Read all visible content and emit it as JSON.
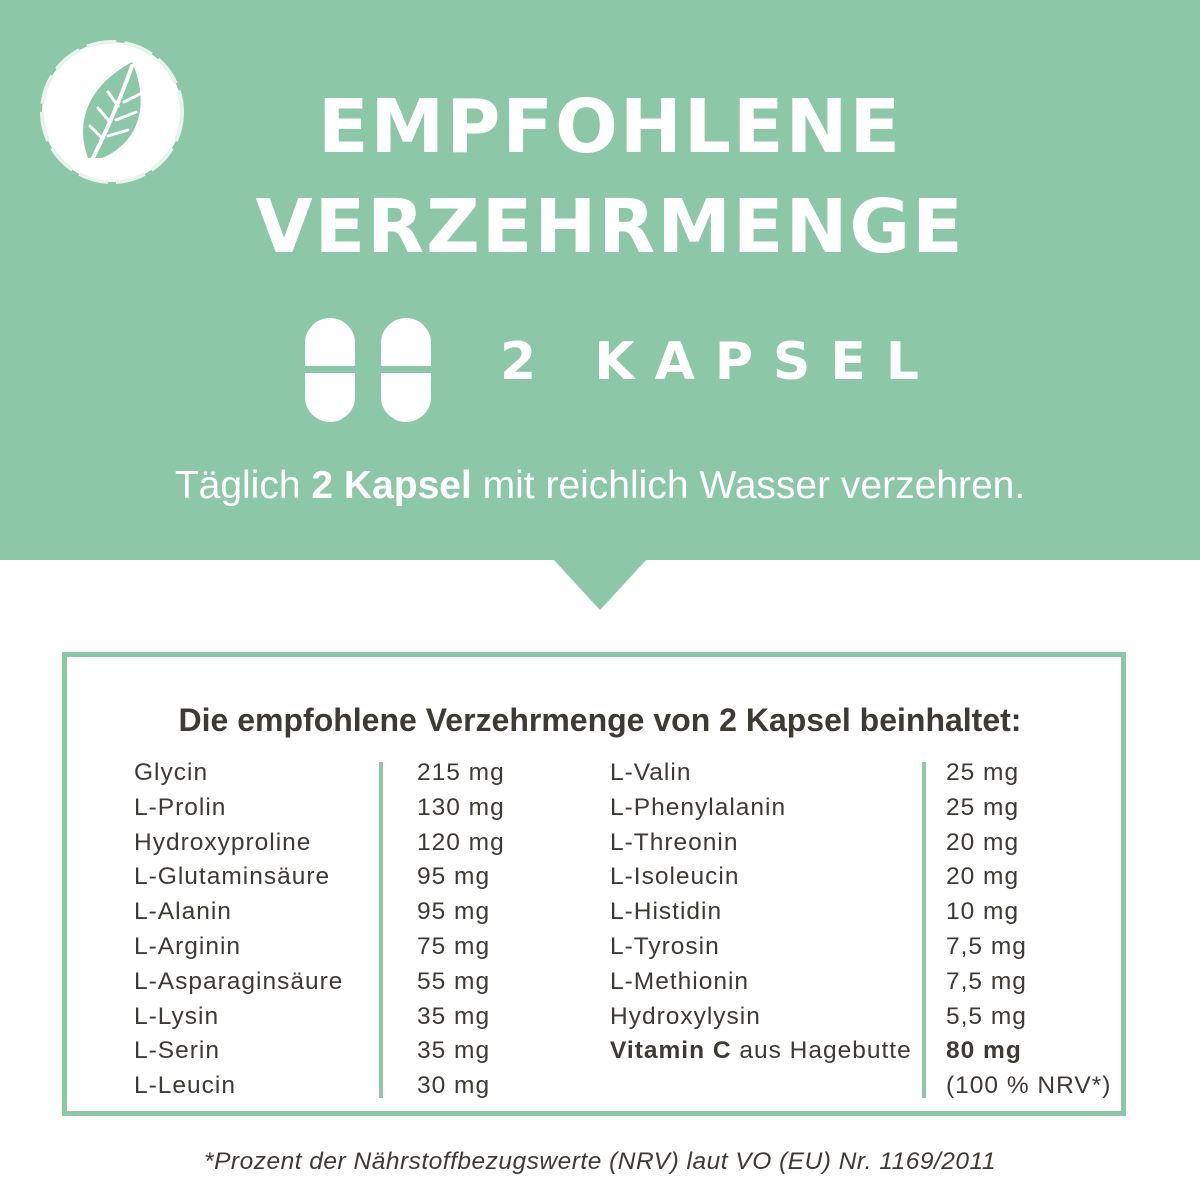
{
  "header": {
    "title_line1": "EMPFOHLENE",
    "title_line2": "VERZEHRMENGE",
    "dose_label": "2 KAPSEL",
    "instruction_pre": "Täglich ",
    "instruction_bold": "2 Kapsel",
    "instruction_post": " mit reichlich Wasser verzehren."
  },
  "colors": {
    "accent": "#8cc7a8",
    "text": "#3d3a35",
    "background": "#ffffff"
  },
  "icons": {
    "logo": "leaf-icon",
    "capsule": "capsule-icon"
  },
  "nutrients": {
    "heading": "Die empfohlene Verzehrmenge von 2 Kapsel beinhaltet:",
    "left": [
      {
        "name": "Glycin",
        "amount": "215 mg"
      },
      {
        "name": "L-Prolin",
        "amount": "130 mg"
      },
      {
        "name": "Hydroxyproline",
        "amount": "120 mg"
      },
      {
        "name": "L-Glutaminsäure",
        "amount": "95 mg"
      },
      {
        "name": "L-Alanin",
        "amount": "95 mg"
      },
      {
        "name": "L-Arginin",
        "amount": "75 mg"
      },
      {
        "name": "L-Asparaginsäure",
        "amount": "55 mg"
      },
      {
        "name": "L-Lysin",
        "amount": "35 mg"
      },
      {
        "name": "L-Serin",
        "amount": "35 mg"
      },
      {
        "name": "L-Leucin",
        "amount": "30 mg"
      }
    ],
    "right": [
      {
        "name": "L-Valin",
        "amount": "25 mg"
      },
      {
        "name": "L-Phenylalanin",
        "amount": "25 mg"
      },
      {
        "name": "L-Threonin",
        "amount": "20 mg"
      },
      {
        "name": "L-Isoleucin",
        "amount": "20 mg"
      },
      {
        "name": "L-Histidin",
        "amount": "10 mg"
      },
      {
        "name": "L-Tyrosin",
        "amount": "7,5 mg"
      },
      {
        "name": "L-Methionin",
        "amount": "7,5 mg"
      },
      {
        "name": "Hydroxylysin",
        "amount": "5,5 mg"
      }
    ],
    "vitamin": {
      "name_bold": "Vitamin C",
      "name_rest": " aus Hagebutte",
      "amount": "80 mg",
      "nrv": "(100 % NRV*)"
    }
  },
  "footnote": "*Prozent der Nährstoffbezugswerte (NRV) laut VO (EU) Nr. 1169/2011"
}
